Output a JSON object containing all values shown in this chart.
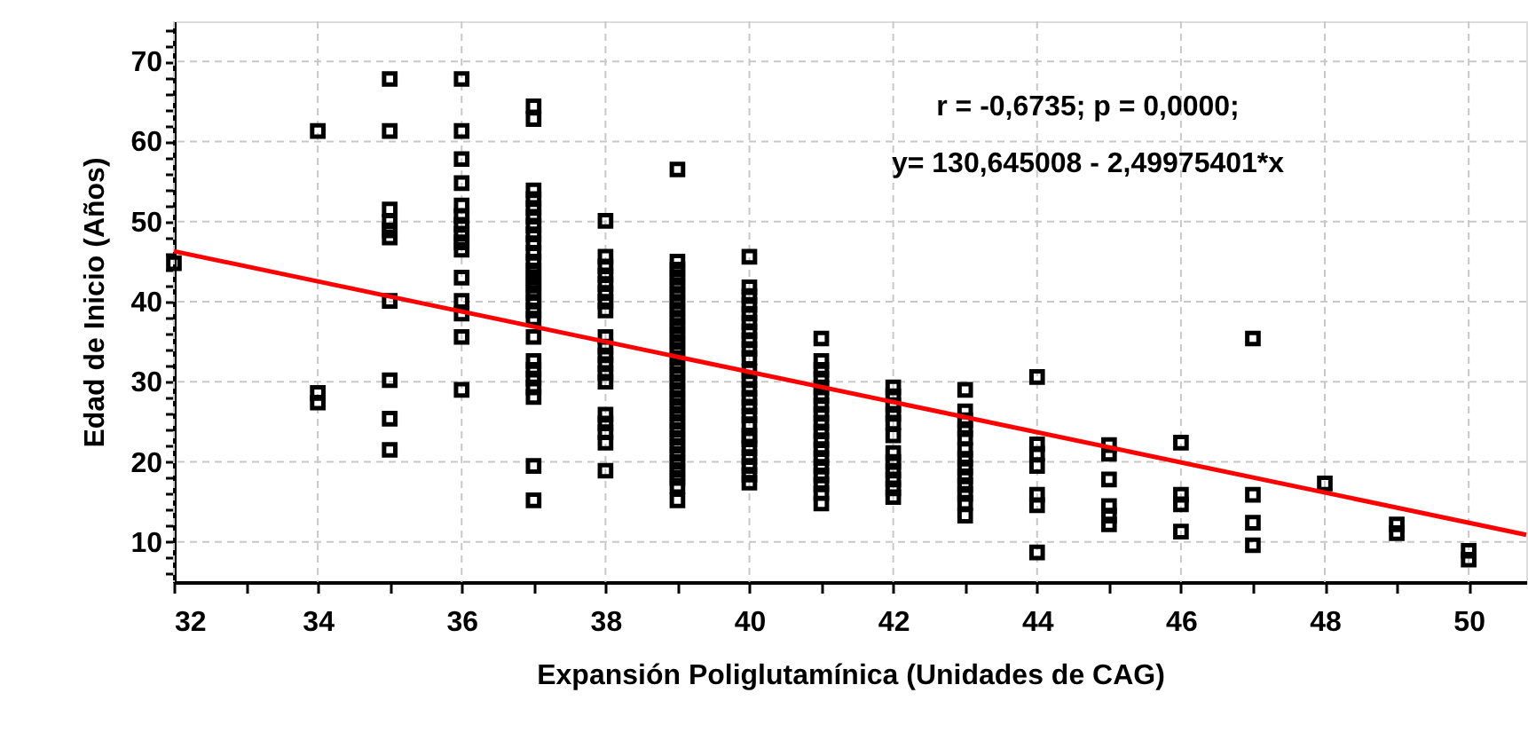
{
  "chart_data": {
    "type": "scatter",
    "xlabel": "Expansión Poliglutamínica (Unidades de CAG)",
    "ylabel": "Edad de Inicio (Años)",
    "annotations": [
      "r = -0,6735; p = 0,0000;",
      "y= 130,645008 - 2,49975401*x"
    ],
    "xlim": [
      32,
      50.8
    ],
    "ylim": [
      5,
      75
    ],
    "xticks": [
      32,
      {
        "value": 33,
        "label": null
      },
      34,
      {
        "value": 35,
        "label": null
      },
      36,
      {
        "value": 37,
        "label": null
      },
      38,
      {
        "value": 39,
        "label": null
      },
      40,
      {
        "value": 41,
        "label": null
      },
      42,
      {
        "value": 43,
        "label": null
      },
      44,
      {
        "value": 45,
        "label": null
      },
      46,
      {
        "value": 47,
        "label": null
      },
      48,
      {
        "value": 49,
        "label": null
      },
      50
    ],
    "yticks": [
      {
        "value": 6,
        "label": null
      },
      {
        "value": 8,
        "label": null
      },
      10,
      {
        "value": 12,
        "label": null
      },
      {
        "value": 14,
        "label": null
      },
      {
        "value": 16,
        "label": null
      },
      {
        "value": 18,
        "label": null
      },
      20,
      {
        "value": 22,
        "label": null
      },
      {
        "value": 24,
        "label": null
      },
      {
        "value": 26,
        "label": null
      },
      {
        "value": 28,
        "label": null
      },
      30,
      {
        "value": 32,
        "label": null
      },
      {
        "value": 34,
        "label": null
      },
      {
        "value": 36,
        "label": null
      },
      {
        "value": 38,
        "label": null
      },
      40,
      {
        "value": 42,
        "label": null
      },
      {
        "value": 44,
        "label": null
      },
      {
        "value": 46,
        "label": null
      },
      {
        "value": 48,
        "label": null
      },
      50,
      {
        "value": 52,
        "label": null
      },
      {
        "value": 54,
        "label": null
      },
      {
        "value": 56,
        "label": null
      },
      {
        "value": 58,
        "label": null
      },
      60,
      {
        "value": 62,
        "label": null
      },
      {
        "value": 64,
        "label": null
      },
      {
        "value": 66,
        "label": null
      },
      {
        "value": 68,
        "label": null
      },
      70,
      {
        "value": 72,
        "label": null
      },
      {
        "value": 74,
        "label": null
      }
    ],
    "grid": true,
    "marker": "square",
    "series": [
      {
        "color": "#000000",
        "x": [
          32,
          34,
          34,
          34,
          35,
          35,
          35,
          35,
          35,
          35,
          35,
          35,
          35,
          35,
          36,
          36,
          36,
          36,
          36,
          36,
          36,
          36,
          36,
          36,
          36,
          36,
          36,
          36,
          36,
          37,
          37,
          37,
          37,
          37,
          37,
          37,
          37,
          37,
          37,
          37,
          37,
          37,
          37,
          37,
          37,
          37,
          37,
          37,
          37,
          37,
          37,
          37,
          37,
          37,
          37,
          38,
          38,
          38,
          38,
          38,
          38,
          38,
          38,
          38,
          38,
          38,
          38,
          38,
          38,
          38,
          38,
          38,
          38,
          38,
          39,
          39,
          39,
          39,
          39,
          39,
          39,
          39,
          39,
          39,
          39,
          39,
          39,
          39,
          39,
          39,
          39,
          39,
          39,
          39,
          39,
          39,
          39,
          39,
          39,
          39,
          39,
          39,
          39,
          39,
          39,
          40,
          40,
          40,
          40,
          40,
          40,
          40,
          40,
          40,
          40,
          40,
          40,
          40,
          40,
          40,
          40,
          40,
          40,
          40,
          40,
          40,
          40,
          40,
          40,
          41,
          41,
          41,
          41,
          41,
          41,
          41,
          41,
          41,
          41,
          41,
          41,
          41,
          41,
          41,
          41,
          41,
          41,
          42,
          42,
          42,
          42,
          42,
          42,
          42,
          42,
          42,
          42,
          42,
          42,
          43,
          43,
          43,
          43,
          43,
          43,
          43,
          43,
          43,
          43,
          43,
          43,
          43,
          44,
          44,
          44,
          44,
          44,
          44,
          44,
          45,
          45,
          45,
          45,
          45,
          45,
          46,
          46,
          46,
          46,
          47,
          47,
          47,
          47,
          48,
          49,
          49,
          50,
          50
        ],
        "values": [
          44.8,
          61.3,
          28.6,
          27.4,
          67.8,
          61.3,
          51.5,
          50,
          48.9,
          48,
          40.1,
          30.2,
          25.4,
          21.5,
          67.8,
          61.3,
          57.8,
          54.8,
          52,
          50.7,
          49.6,
          48.5,
          47.4,
          46.5,
          43,
          40.1,
          38.5,
          35.6,
          29,
          64.4,
          62.8,
          53.9,
          52.8,
          51.7,
          50.6,
          49.5,
          48.4,
          47.3,
          46.1,
          45,
          43.9,
          43,
          42,
          41.1,
          40,
          38.9,
          37.9,
          35.6,
          32.6,
          31.5,
          30.4,
          29.3,
          28.1,
          19.5,
          15.2,
          50.1,
          45.6,
          44.4,
          43.3,
          42.2,
          41.1,
          40,
          38.9,
          35.6,
          34.4,
          33.3,
          32.2,
          31.1,
          30,
          25.9,
          24.8,
          23.7,
          22.4,
          18.9,
          56.5,
          45,
          44,
          43,
          42,
          41,
          40,
          39,
          38,
          37,
          36,
          35,
          34,
          33,
          32,
          31,
          30,
          29,
          28,
          27,
          26,
          25,
          24,
          23,
          22,
          21,
          20,
          19,
          18,
          17,
          15.2,
          45.6,
          41.8,
          40.7,
          39.6,
          38.5,
          37.4,
          36.3,
          35.2,
          34.1,
          33,
          31.3,
          30.2,
          29.1,
          28,
          26.9,
          25.8,
          24.7,
          23.3,
          22.8,
          21.7,
          20.6,
          19.5,
          18.4,
          17.4,
          35.4,
          32.6,
          31.5,
          30.4,
          29.3,
          28.2,
          27.1,
          26,
          24.9,
          23.8,
          22.7,
          21.6,
          20.5,
          19.4,
          18.3,
          17.2,
          16.1,
          14.8,
          29.3,
          28.2,
          27.1,
          26,
          24.9,
          23.3,
          21.1,
          20,
          18.9,
          17.8,
          16.7,
          15.6,
          29,
          26.3,
          25.2,
          24.1,
          23,
          21.5,
          20.4,
          19.3,
          18.2,
          17.1,
          16,
          14.9,
          13.3,
          30.6,
          22.2,
          21,
          19.5,
          15.9,
          14.6,
          8.7,
          22.1,
          21,
          17.8,
          14.5,
          13.3,
          12.2,
          22.4,
          15.9,
          14.7,
          11.3,
          35.4,
          15.9,
          12.4,
          9.6,
          17.3,
          12.2,
          11.1,
          8.9,
          7.8
        ]
      },
      {
        "type": "line",
        "color": "#ff0000",
        "marker": "none",
        "line_style": "solid",
        "x": [
          32,
          50.8
        ],
        "values": [
          46.3,
          10.9
        ]
      }
    ]
  }
}
